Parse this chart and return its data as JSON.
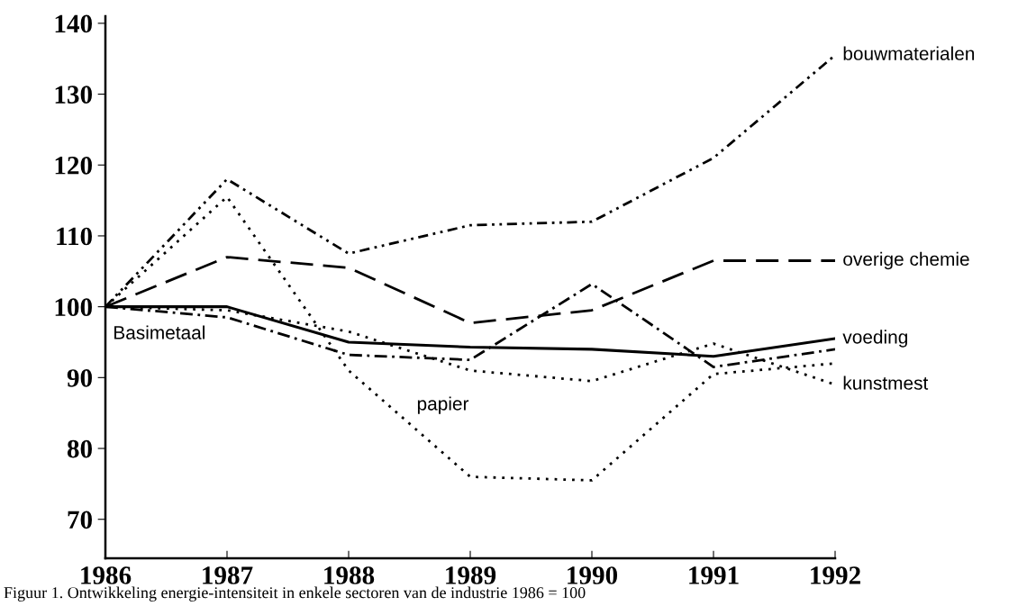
{
  "chart_data": {
    "type": "line",
    "x": [
      1986,
      1987,
      1988,
      1989,
      1990,
      1991,
      1992
    ],
    "xlim": [
      1986,
      1992
    ],
    "xticks": [
      1986,
      1987,
      1988,
      1989,
      1990,
      1991,
      1992
    ],
    "ylim": [
      64.5,
      141
    ],
    "yticks": [
      70,
      80,
      90,
      100,
      110,
      120,
      130,
      140
    ],
    "grid": false,
    "legend": false,
    "series": [
      {
        "name": "bouwmaterialen",
        "color": "#000000",
        "line_style": "dashdotdot",
        "values": [
          100,
          118,
          107.5,
          111.5,
          112,
          121,
          135.5
        ]
      },
      {
        "name": "overige chemie",
        "color": "#000000",
        "line_style": "dashed",
        "values": [
          100,
          107,
          105.5,
          97.7,
          99.5,
          106.5,
          106.5
        ]
      },
      {
        "name": "voeding",
        "color": "#000000",
        "line_style": "solid",
        "values": [
          100,
          100,
          95,
          94.3,
          94,
          93,
          95.5
        ]
      },
      {
        "name": "Basimetaal",
        "color": "#000000",
        "line_style": "dashdot",
        "values": [
          100,
          98.5,
          93.2,
          92.5,
          103.2,
          91.5,
          94
        ]
      },
      {
        "name": "papier",
        "color": "#000000",
        "line_style": "dotted",
        "values": [
          100,
          115.5,
          91,
          76,
          75.5,
          90.5,
          92
        ]
      },
      {
        "name": "kunstmest",
        "color": "#000000",
        "line_style": "dotted",
        "values": [
          100,
          99.5,
          96.5,
          91,
          89.5,
          94.8,
          89
        ]
      }
    ],
    "annotations": [
      "Figuur 1. Ontwikkeling energie-intensiteit in enkele sectoren van de industrie 1986 = 100"
    ]
  }
}
